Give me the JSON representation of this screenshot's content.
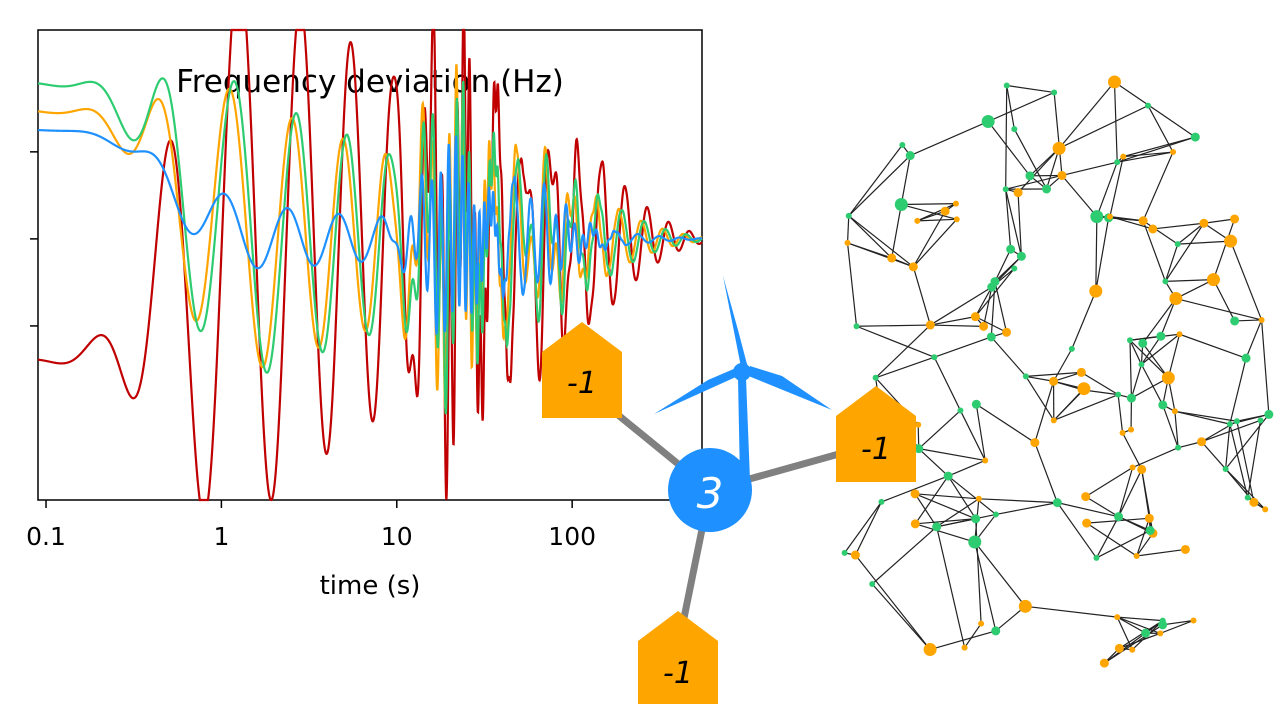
{
  "chart_data": {
    "type": "line",
    "title": "Frequency deviation (Hz)",
    "xlabel": "time (s)",
    "ylabel": "",
    "xscale": "log",
    "xlim": [
      0.09,
      550
    ],
    "ylim": [
      -1.5,
      1.2
    ],
    "x_ticks": [
      0.1,
      1,
      10,
      100
    ],
    "x_tick_labels": [
      "0.1",
      "1",
      "10",
      "100"
    ],
    "y_tick_count": 3,
    "grid": false,
    "legend": "none",
    "series": [
      {
        "color": "#c00000",
        "y0": -0.7,
        "amp1": 1.82,
        "tpk": 1.0,
        "k": 5.6
      },
      {
        "color": "#ffa500",
        "y0": 0.74,
        "amp1": 0.9,
        "tpk": 1.0,
        "k": 5.6
      },
      {
        "color": "#2ecc71",
        "y0": 0.9,
        "amp1": 0.95,
        "tpk": 1.0,
        "k": 5.6
      },
      {
        "color": "#1e90ff",
        "y0": 0.63,
        "amp1": 0.22,
        "tpk": 1.0,
        "k": 5.6
      }
    ]
  },
  "diagram": {
    "hub": {
      "label": "3",
      "color": "#1e90ff"
    },
    "houses": [
      {
        "label": "-1"
      },
      {
        "label": "-1"
      },
      {
        "label": "-1"
      }
    ],
    "house_color": "#ffa500",
    "link_color": "#808080",
    "turbine_color": "#1e90ff"
  },
  "network": {
    "node_colors": [
      "#ffa500",
      "#2ecc71"
    ],
    "edge_color": "#222222",
    "seed": 7
  }
}
